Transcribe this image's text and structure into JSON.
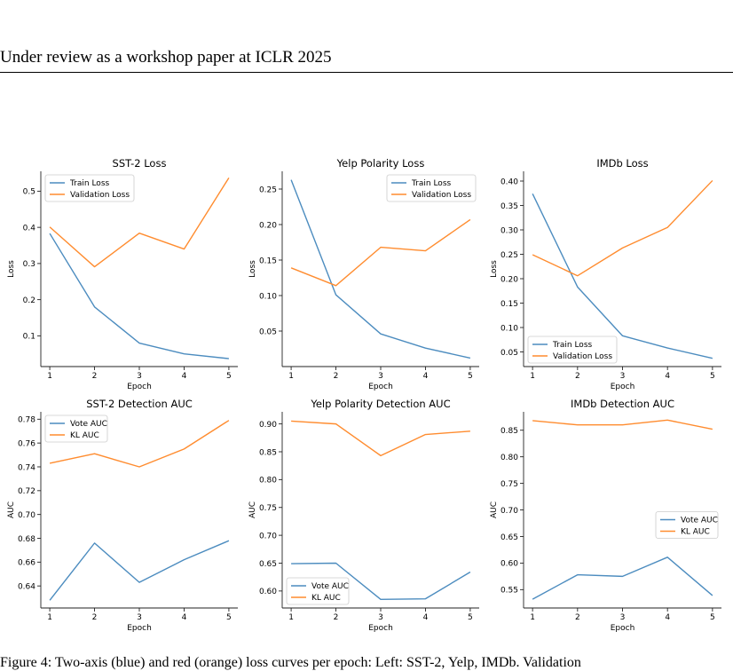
{
  "page": {
    "header": "Under review as a workshop paper at ICLR 2025",
    "caption": "Figure 4: Two-axis (blue) and red (orange) loss curves per epoch: Left: SST-2, Yelp, IMDb. Validation"
  },
  "colors": {
    "series1": "#4c8cbf",
    "series2": "#ff8c2f",
    "axis": "#222222"
  },
  "chart_data": [
    {
      "type": "line",
      "title": "SST-2 Loss",
      "xlabel": "Epoch",
      "ylabel": "Loss",
      "x": [
        1,
        2,
        3,
        4,
        5
      ],
      "xlim": [
        0.8,
        5.2
      ],
      "ylim": [
        0.015,
        0.555
      ],
      "yticks": [
        0.1,
        0.2,
        0.3,
        0.4,
        0.5
      ],
      "ytick_labels": [
        "0.1",
        "0.2",
        "0.3",
        "0.4",
        "0.5"
      ],
      "legend": "top-left",
      "series": [
        {
          "name": "Train Loss",
          "values": [
            0.383,
            0.18,
            0.08,
            0.05,
            0.037
          ]
        },
        {
          "name": "Validation Loss",
          "values": [
            0.401,
            0.291,
            0.384,
            0.34,
            0.537
          ]
        }
      ]
    },
    {
      "type": "line",
      "title": "Yelp Polarity Loss",
      "xlabel": "Epoch",
      "ylabel": "Loss",
      "x": [
        1,
        2,
        3,
        4,
        5
      ],
      "xlim": [
        0.8,
        5.2
      ],
      "ylim": [
        0.0,
        0.275
      ],
      "yticks": [
        0.05,
        0.1,
        0.15,
        0.2,
        0.25
      ],
      "ytick_labels": [
        "0.05",
        "0.10",
        "0.15",
        "0.20",
        "0.25"
      ],
      "legend": "top-right",
      "series": [
        {
          "name": "Train Loss",
          "values": [
            0.263,
            0.101,
            0.046,
            0.026,
            0.012
          ]
        },
        {
          "name": "Validation Loss",
          "values": [
            0.139,
            0.114,
            0.168,
            0.163,
            0.207
          ]
        }
      ]
    },
    {
      "type": "line",
      "title": "IMDb Loss",
      "xlabel": "Epoch",
      "ylabel": "Loss",
      "x": [
        1,
        2,
        3,
        4,
        5
      ],
      "xlim": [
        0.8,
        5.2
      ],
      "ylim": [
        0.02,
        0.42
      ],
      "yticks": [
        0.05,
        0.1,
        0.15,
        0.2,
        0.25,
        0.3,
        0.35,
        0.4
      ],
      "ytick_labels": [
        "0.05",
        "0.10",
        "0.15",
        "0.20",
        "0.25",
        "0.30",
        "0.35",
        "0.40"
      ],
      "legend": "bottom-left",
      "series": [
        {
          "name": "Train Loss",
          "values": [
            0.374,
            0.183,
            0.083,
            0.058,
            0.037
          ]
        },
        {
          "name": "Validation Loss",
          "values": [
            0.249,
            0.206,
            0.263,
            0.305,
            0.401
          ]
        }
      ]
    },
    {
      "type": "line",
      "title": "SST-2 Detection AUC",
      "xlabel": "Epoch",
      "ylabel": "AUC",
      "x": [
        1,
        2,
        3,
        4,
        5
      ],
      "xlim": [
        0.8,
        5.2
      ],
      "ylim": [
        0.6215,
        0.7862
      ],
      "yticks": [
        0.64,
        0.66,
        0.68,
        0.7,
        0.72,
        0.74,
        0.76,
        0.78
      ],
      "ytick_labels": [
        "0.64",
        "0.66",
        "0.68",
        "0.70",
        "0.72",
        "0.74",
        "0.76",
        "0.78"
      ],
      "legend": "top-left",
      "series": [
        {
          "name": "Vote AUC",
          "values": [
            0.628,
            0.676,
            0.643,
            0.662,
            0.678
          ]
        },
        {
          "name": "KL AUC",
          "values": [
            0.743,
            0.751,
            0.74,
            0.755,
            0.779
          ]
        }
      ]
    },
    {
      "type": "line",
      "title": "Yelp Polarity Detection AUC",
      "xlabel": "Epoch",
      "ylabel": "AUC",
      "x": [
        1,
        2,
        3,
        4,
        5
      ],
      "xlim": [
        0.8,
        5.2
      ],
      "ylim": [
        0.5695,
        0.9217
      ],
      "yticks": [
        0.6,
        0.65,
        0.7,
        0.75,
        0.8,
        0.85,
        0.9
      ],
      "ytick_labels": [
        "0.60",
        "0.65",
        "0.70",
        "0.75",
        "0.80",
        "0.85",
        "0.90"
      ],
      "legend": "bottom-left",
      "series": [
        {
          "name": "Vote AUC",
          "values": [
            0.649,
            0.65,
            0.585,
            0.586,
            0.634
          ]
        },
        {
          "name": "KL AUC",
          "values": [
            0.905,
            0.9,
            0.843,
            0.881,
            0.887
          ]
        }
      ]
    },
    {
      "type": "line",
      "title": "IMDb Detection AUC",
      "xlabel": "Epoch",
      "ylabel": "AUC",
      "x": [
        1,
        2,
        3,
        4,
        5
      ],
      "xlim": [
        0.8,
        5.2
      ],
      "ylim": [
        0.5155,
        0.8846
      ],
      "yticks": [
        0.55,
        0.6,
        0.65,
        0.7,
        0.75,
        0.8,
        0.85
      ],
      "ytick_labels": [
        "0.55",
        "0.60",
        "0.65",
        "0.70",
        "0.75",
        "0.80",
        "0.85"
      ],
      "legend": "center-right",
      "series": [
        {
          "name": "Vote AUC",
          "values": [
            0.532,
            0.578,
            0.575,
            0.611,
            0.539
          ]
        },
        {
          "name": "KL AUC",
          "values": [
            0.868,
            0.86,
            0.86,
            0.869,
            0.852
          ]
        }
      ]
    }
  ]
}
